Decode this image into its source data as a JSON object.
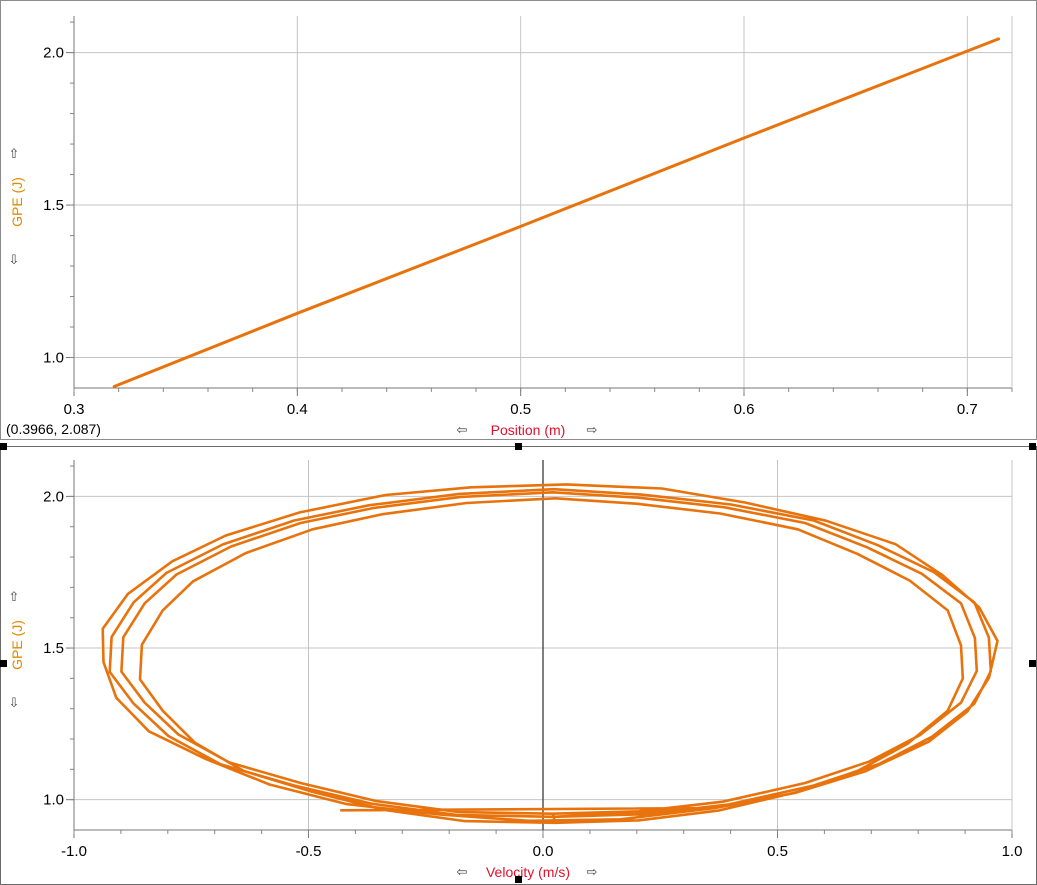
{
  "colors": {
    "series": "#e8730c",
    "grid": "#c4c4c4",
    "zero_line": "#555555",
    "y_title": "#e08a00",
    "x_title": "#e0102a"
  },
  "readout": "(0.3966, 2.087)",
  "chart_data": [
    {
      "type": "line",
      "xlabel": "Position (m)",
      "ylabel": "GPE (J)",
      "xlim": [
        0.3,
        0.72
      ],
      "ylim": [
        0.9,
        2.12
      ],
      "x_ticks": [
        "0.3",
        "0.4",
        "0.5",
        "0.6",
        "0.7"
      ],
      "y_ticks": [
        "1.0",
        "1.5",
        "2.0"
      ],
      "x_tick_values": [
        0.3,
        0.4,
        0.5,
        0.6,
        0.7
      ],
      "y_tick_values": [
        1.0,
        1.5,
        2.0
      ],
      "grid": true,
      "series": [
        {
          "x": [
            0.318,
            0.4,
            0.5,
            0.6,
            0.714
          ],
          "y": [
            0.905,
            1.145,
            1.43,
            1.72,
            2.045
          ]
        }
      ]
    },
    {
      "type": "line",
      "xlabel": "Velocity (m/s)",
      "ylabel": "GPE (J)",
      "xlim": [
        -1.0,
        1.0
      ],
      "ylim": [
        0.9,
        2.12
      ],
      "x_ticks": [
        "-1.0",
        "-0.5",
        "0.0",
        "0.5",
        "1.0"
      ],
      "y_ticks": [
        "1.0",
        "1.5",
        "2.0"
      ],
      "x_tick_values": [
        -1.0,
        -0.5,
        0.0,
        0.5,
        1.0
      ],
      "y_tick_values": [
        1.0,
        1.5,
        2.0
      ],
      "grid": true,
      "zero_line": true,
      "loop": {
        "start_velocity": -0.43,
        "start_gpe": 0.965,
        "loops": [
          {
            "v_left": -0.945,
            "v_right": 0.965,
            "gpe_bottom": 0.93,
            "gpe_top": 2.04
          },
          {
            "v_left": -0.925,
            "v_right": 0.96,
            "gpe_bottom": 0.94,
            "gpe_top": 2.02
          },
          {
            "v_left": -0.9,
            "v_right": 0.93,
            "gpe_bottom": 0.95,
            "gpe_top": 2.01
          },
          {
            "v_left": -0.86,
            "v_right": 0.9,
            "gpe_bottom": 0.92,
            "gpe_top": 1.99
          }
        ]
      }
    }
  ]
}
